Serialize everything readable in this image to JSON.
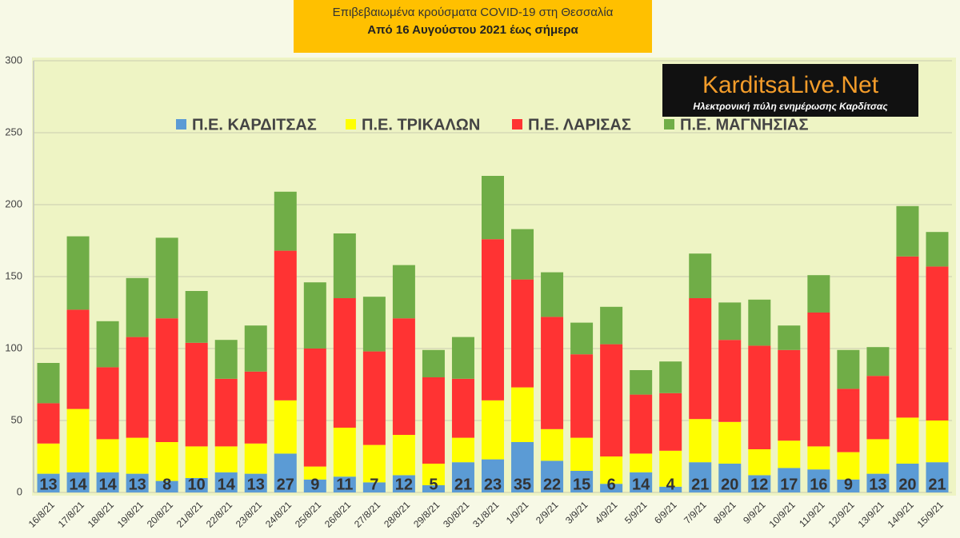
{
  "chart_data": {
    "type": "stacked_bar",
    "title": "Επιβεβαιωμένα κρούσματα COVID-19 στη Θεσσαλία",
    "subtitle": "Από 16 Αυγούστου 2021 έως σήμερα",
    "annotations": [
      "KarditsaLive.Net",
      "Ηλεκτρονική πύλη ενημέρωσης Καρδίτσας"
    ],
    "categories": [
      "16/8/21",
      "17/8/21",
      "18/8/21",
      "19/8/21",
      "20/8/21",
      "21/8/21",
      "22/8/21",
      "23/8/21",
      "24/8/21",
      "25/8/21",
      "26/8/21",
      "27/8/21",
      "28/8/21",
      "29/8/21",
      "30/8/21",
      "31/8/21",
      "1/9/21",
      "2/9/21",
      "3/9/21",
      "4/9/21",
      "5/9/21",
      "6/9/21",
      "7/9/21",
      "8/9/21",
      "9/9/21",
      "10/9/21",
      "11/9/21",
      "12/9/21",
      "13/9/21",
      "14/9/21",
      "15/9/21"
    ],
    "series": [
      {
        "name": "Π.Ε. ΚΑΡΔΙΤΣΑΣ",
        "color": "#5b9bd5",
        "values": [
          13,
          14,
          14,
          13,
          8,
          10,
          14,
          13,
          27,
          9,
          11,
          7,
          12,
          5,
          21,
          23,
          35,
          22,
          15,
          6,
          14,
          4,
          21,
          20,
          12,
          17,
          16,
          9,
          13,
          20,
          21
        ]
      },
      {
        "name": "Π.Ε. ΤΡΙΚΑΛΩΝ",
        "color": "#ffff00",
        "values": [
          21,
          44,
          23,
          25,
          27,
          22,
          18,
          21,
          37,
          9,
          34,
          26,
          28,
          15,
          17,
          41,
          38,
          22,
          23,
          19,
          13,
          25,
          30,
          29,
          18,
          19,
          16,
          19,
          24,
          32,
          29
        ]
      },
      {
        "name": "Π.Ε. ΛΑΡΙΣΑΣ",
        "color": "#ff3333",
        "values": [
          28,
          69,
          50,
          70,
          86,
          72,
          47,
          50,
          104,
          82,
          90,
          65,
          81,
          60,
          41,
          112,
          75,
          78,
          58,
          78,
          41,
          40,
          84,
          57,
          72,
          63,
          93,
          44,
          44,
          112,
          107
        ]
      },
      {
        "name": "Π.Ε. ΜΑΓΝΗΣΙΑΣ",
        "color": "#70ad47",
        "values": [
          28,
          51,
          32,
          41,
          56,
          36,
          27,
          32,
          41,
          46,
          45,
          38,
          37,
          19,
          29,
          44,
          35,
          31,
          22,
          26,
          17,
          22,
          31,
          26,
          32,
          17,
          26,
          27,
          20,
          35,
          24
        ]
      }
    ],
    "ylim": [
      0,
      300
    ],
    "yticks": [
      0,
      50,
      100,
      150,
      200,
      250,
      300
    ],
    "grid": true,
    "legend": "top"
  }
}
